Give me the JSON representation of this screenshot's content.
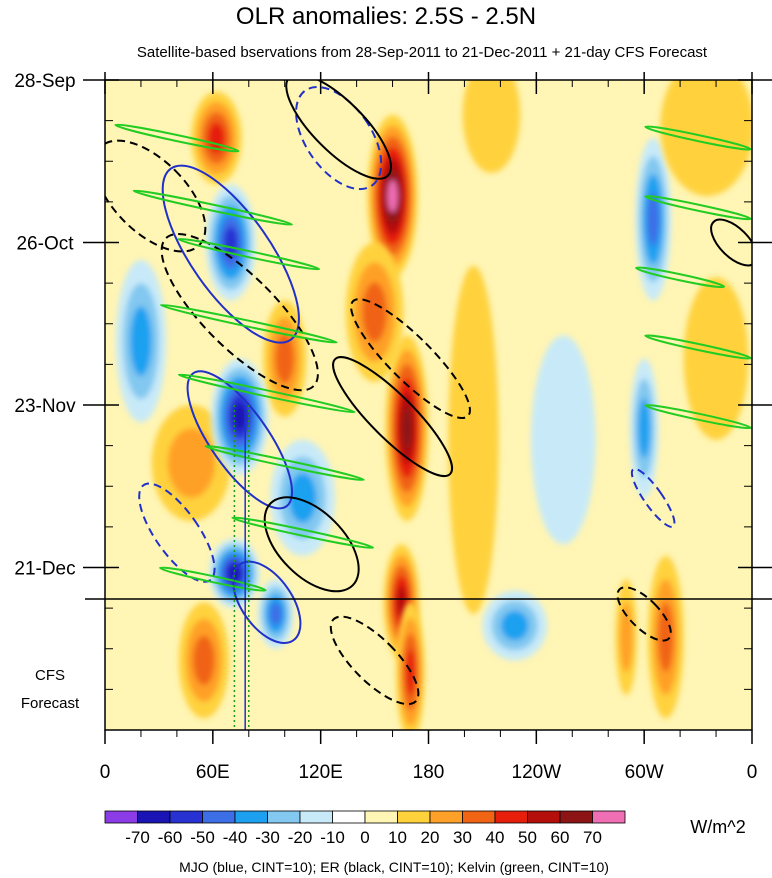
{
  "chart_data": {
    "type": "heatmap",
    "title": "OLR anomalies: 2.5S - 2.5N",
    "subtitle": "Satellite-based bservations from 28-Sep-2011 to 21-Dec-2011 + 21-day CFS Forecast",
    "x_range": [
      0,
      360
    ],
    "x_ticks": [
      {
        "lon": 0,
        "label": "0"
      },
      {
        "lon": 60,
        "label": "60E"
      },
      {
        "lon": 120,
        "label": "120E"
      },
      {
        "lon": 180,
        "label": "180"
      },
      {
        "lon": 240,
        "label": "120W"
      },
      {
        "lon": 300,
        "label": "60W"
      },
      {
        "lon": 360,
        "label": "0"
      }
    ],
    "y_range_days": [
      0,
      112
    ],
    "y_ticks": [
      {
        "day": 0,
        "label": "28-Sep"
      },
      {
        "day": 28,
        "label": "26-Oct"
      },
      {
        "day": 56,
        "label": "23-Nov"
      },
      {
        "day": 84,
        "label": "21-Dec"
      }
    ],
    "forecast_start_day": 84,
    "forecast_label_line1": "CFS",
    "forecast_label_line2": "Forecast",
    "colorbar": {
      "levels": [
        "-70",
        "-60",
        "-50",
        "-40",
        "-30",
        "-20",
        "-10",
        "0",
        "10",
        "20",
        "30",
        "40",
        "50",
        "60",
        "70"
      ],
      "colors": [
        "#8b3ce6",
        "#1a14b4",
        "#2832d2",
        "#3c6ee6",
        "#1ea0f0",
        "#82c8f0",
        "#c8eaf8",
        "#ffffff",
        "#fff5b4",
        "#ffd23c",
        "#ffa028",
        "#f06414",
        "#e61e0a",
        "#b40f0a",
        "#8c1414",
        "#f06eb4"
      ],
      "units": "W/m^2"
    },
    "field_blobs": [
      {
        "lon": 160,
        "day": 20,
        "v": 70,
        "rl": 14,
        "rd": 14
      },
      {
        "lon": 168,
        "day": 60,
        "v": 60,
        "rl": 12,
        "rd": 16
      },
      {
        "lon": 165,
        "day": 90,
        "v": 55,
        "rl": 10,
        "rd": 10
      },
      {
        "lon": 170,
        "day": 102,
        "v": 45,
        "rl": 8,
        "rd": 12
      },
      {
        "lon": 150,
        "day": 40,
        "v": 35,
        "rl": 16,
        "rd": 12
      },
      {
        "lon": 62,
        "day": 10,
        "v": 40,
        "rl": 14,
        "rd": 8
      },
      {
        "lon": 48,
        "day": 66,
        "v": 25,
        "rl": 22,
        "rd": 10
      },
      {
        "lon": 55,
        "day": 100,
        "v": 30,
        "rl": 14,
        "rd": 10
      },
      {
        "lon": 100,
        "day": 48,
        "v": 35,
        "rl": 12,
        "rd": 10
      },
      {
        "lon": 70,
        "day": 28,
        "v": -50,
        "rl": 14,
        "rd": 10
      },
      {
        "lon": 75,
        "day": 58,
        "v": -60,
        "rl": 16,
        "rd": 10
      },
      {
        "lon": 72,
        "day": 85,
        "v": -65,
        "rl": 14,
        "rd": 6
      },
      {
        "lon": 95,
        "day": 92,
        "v": -40,
        "rl": 10,
        "rd": 6
      },
      {
        "lon": 20,
        "day": 45,
        "v": -35,
        "rl": 14,
        "rd": 14
      },
      {
        "lon": 110,
        "day": 72,
        "v": -30,
        "rl": 18,
        "rd": 10
      },
      {
        "lon": 228,
        "day": 94,
        "v": -30,
        "rl": 18,
        "rd": 6
      },
      {
        "lon": 305,
        "day": 24,
        "v": -40,
        "rl": 10,
        "rd": 14
      },
      {
        "lon": 300,
        "day": 60,
        "v": -30,
        "rl": 8,
        "rd": 12
      },
      {
        "lon": 312,
        "day": 96,
        "v": 30,
        "rl": 10,
        "rd": 14
      },
      {
        "lon": 290,
        "day": 96,
        "v": 22,
        "rl": 6,
        "rd": 10
      },
      {
        "lon": 335,
        "day": 8,
        "v": 18,
        "rl": 26,
        "rd": 12
      },
      {
        "lon": 340,
        "day": 48,
        "v": 12,
        "rl": 18,
        "rd": 14
      },
      {
        "lon": 205,
        "day": 62,
        "v": 12,
        "rl": 14,
        "rd": 30
      },
      {
        "lon": 215,
        "day": 6,
        "v": 14,
        "rl": 16,
        "rd": 10
      },
      {
        "lon": 255,
        "day": 62,
        "v": -12,
        "rl": 18,
        "rd": 18
      }
    ],
    "mjo_contours": [
      {
        "lon": 70,
        "day": 30,
        "rl": 22,
        "rd": 18,
        "dashed": false
      },
      {
        "lon": 75,
        "day": 62,
        "rl": 16,
        "rd": 14,
        "dashed": false
      },
      {
        "lon": 90,
        "day": 90,
        "rl": 14,
        "rd": 8,
        "dashed": false
      },
      {
        "lon": 130,
        "day": 10,
        "rl": 18,
        "rd": 10,
        "dashed": true
      },
      {
        "lon": 40,
        "day": 78,
        "rl": 12,
        "rd": 10,
        "dashed": true
      },
      {
        "lon": 305,
        "day": 72,
        "rl": 5,
        "rd": 6,
        "dashed": true
      }
    ],
    "er_contours": [
      {
        "lon": 130,
        "day": 8,
        "rl": 14,
        "rd": 12,
        "dashed": false
      },
      {
        "lon": 160,
        "day": 58,
        "rl": 12,
        "rd": 14,
        "dashed": false
      },
      {
        "lon": 115,
        "day": 80,
        "rl": 18,
        "rd": 10,
        "dashed": false
      },
      {
        "lon": 25,
        "day": 20,
        "rl": 20,
        "rd": 12,
        "dashed": true
      },
      {
        "lon": 170,
        "day": 48,
        "rl": 12,
        "rd": 14,
        "dashed": true
      },
      {
        "lon": 75,
        "day": 40,
        "rl": 20,
        "rd": 18,
        "dashed": true
      },
      {
        "lon": 300,
        "day": 92,
        "rl": 8,
        "rd": 6,
        "dashed": true
      },
      {
        "lon": 350,
        "day": 28,
        "rl": 8,
        "rd": 5,
        "dashed": false
      },
      {
        "lon": 150,
        "day": 100,
        "rl": 12,
        "rd": 10,
        "dashed": true
      }
    ],
    "kelvin_bands": [
      {
        "lon": 40,
        "day": 10,
        "len": 70
      },
      {
        "lon": 60,
        "day": 22,
        "len": 90
      },
      {
        "lon": 80,
        "day": 30,
        "len": 80
      },
      {
        "lon": 80,
        "day": 42,
        "len": 100
      },
      {
        "lon": 90,
        "day": 54,
        "len": 100
      },
      {
        "lon": 100,
        "day": 66,
        "len": 90
      },
      {
        "lon": 110,
        "day": 78,
        "len": 80
      },
      {
        "lon": 60,
        "day": 86,
        "len": 60
      },
      {
        "lon": 330,
        "day": 10,
        "len": 60
      },
      {
        "lon": 330,
        "day": 22,
        "len": 60
      },
      {
        "lon": 320,
        "day": 34,
        "len": 50
      },
      {
        "lon": 330,
        "day": 46,
        "len": 60
      },
      {
        "lon": 330,
        "day": 58,
        "len": 60
      }
    ],
    "caption": "MJO (blue, CINT=10); ER (black, CINT=10); Kelvin (green, CINT=10)"
  }
}
